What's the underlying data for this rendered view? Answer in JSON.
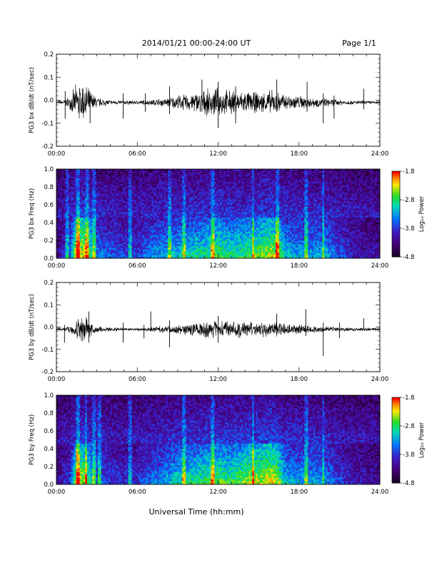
{
  "header": {
    "title": "2014/01/21  00:00-24:00 UT",
    "page": "Page 1/1"
  },
  "footer": {
    "xlabel": "Universal Time (hh:mm)"
  },
  "chart_data": [
    {
      "id": "bx-dbdt",
      "type": "line",
      "ylabel": "PG3 bx dB/dt (nT/sec)",
      "xlim": [
        0,
        24
      ],
      "ylim": [
        -0.2,
        0.2
      ],
      "xticks": [
        "00:00",
        "06:00",
        "12:00",
        "18:00",
        "24:00"
      ],
      "yticks": [
        "0.2",
        "0.1",
        "0.0",
        "-0.1",
        "-0.2"
      ],
      "yvals": [
        0.2,
        0.1,
        0.0,
        -0.1,
        -0.2
      ],
      "baseline": -0.01,
      "envelope": [
        {
          "x": 0.0,
          "amp": 0.008
        },
        {
          "x": 0.5,
          "amp": 0.012
        },
        {
          "x": 1.0,
          "amp": 0.03
        },
        {
          "x": 1.5,
          "amp": 0.09
        },
        {
          "x": 2.0,
          "amp": 0.1
        },
        {
          "x": 2.5,
          "amp": 0.06
        },
        {
          "x": 3.0,
          "amp": 0.025
        },
        {
          "x": 4.0,
          "amp": 0.012
        },
        {
          "x": 5.0,
          "amp": 0.01
        },
        {
          "x": 6.0,
          "amp": 0.01
        },
        {
          "x": 7.0,
          "amp": 0.014
        },
        {
          "x": 8.0,
          "amp": 0.02
        },
        {
          "x": 9.0,
          "amp": 0.035
        },
        {
          "x": 10.0,
          "amp": 0.045
        },
        {
          "x": 11.0,
          "amp": 0.06
        },
        {
          "x": 12.0,
          "amp": 0.07
        },
        {
          "x": 13.0,
          "amp": 0.06
        },
        {
          "x": 14.0,
          "amp": 0.055
        },
        {
          "x": 15.0,
          "amp": 0.05
        },
        {
          "x": 16.0,
          "amp": 0.06
        },
        {
          "x": 17.0,
          "amp": 0.04
        },
        {
          "x": 18.0,
          "amp": 0.035
        },
        {
          "x": 19.0,
          "amp": 0.025
        },
        {
          "x": 20.0,
          "amp": 0.02
        },
        {
          "x": 21.0,
          "amp": 0.015
        },
        {
          "x": 22.0,
          "amp": 0.01
        },
        {
          "x": 23.0,
          "amp": 0.01
        },
        {
          "x": 24.0,
          "amp": 0.008
        }
      ],
      "spikes": [
        {
          "x": 0.65,
          "hi": 0.04,
          "lo": -0.08
        },
        {
          "x": 2.5,
          "hi": 0.02,
          "lo": -0.1
        },
        {
          "x": 4.95,
          "hi": 0.03,
          "lo": -0.08
        },
        {
          "x": 6.6,
          "hi": 0.03,
          "lo": -0.05
        },
        {
          "x": 8.4,
          "hi": 0.06,
          "lo": -0.06
        },
        {
          "x": 10.8,
          "hi": 0.09,
          "lo": -0.05
        },
        {
          "x": 12.0,
          "hi": 0.08,
          "lo": -0.12
        },
        {
          "x": 13.3,
          "hi": 0.06,
          "lo": -0.1
        },
        {
          "x": 16.35,
          "hi": 0.09,
          "lo": -0.05
        },
        {
          "x": 18.6,
          "hi": 0.08,
          "lo": -0.05
        },
        {
          "x": 19.8,
          "hi": 0.03,
          "lo": -0.1
        },
        {
          "x": 20.6,
          "hi": 0.02,
          "lo": -0.08
        },
        {
          "x": 22.8,
          "hi": 0.05,
          "lo": -0.04
        }
      ]
    },
    {
      "id": "bx-spec",
      "type": "heatmap",
      "ylabel": "PG3 bx Freq (Hz)",
      "xlim": [
        0,
        24
      ],
      "ylim": [
        0,
        1.0
      ],
      "xticks": [
        "00:00",
        "06:00",
        "12:00",
        "18:00",
        "24:00"
      ],
      "yticks": [
        "1.0",
        "0.8",
        "0.6",
        "0.4",
        "0.2",
        "0.0"
      ],
      "yvals": [
        1.0,
        0.8,
        0.6,
        0.4,
        0.2,
        0.0
      ],
      "colorbar": {
        "label": "Log₁₀ Power",
        "range": [
          -4.8,
          -1.8
        ],
        "ticks": [
          "-1.8",
          "-2.8",
          "-3.8",
          "-4.8"
        ],
        "tickvals": [
          -1.8,
          -2.8,
          -3.8,
          -4.8
        ]
      },
      "activity": [
        {
          "x": 0.0,
          "power": 0.1
        },
        {
          "x": 1.0,
          "power": 0.35
        },
        {
          "x": 1.5,
          "power": 0.95
        },
        {
          "x": 2.0,
          "power": 0.9
        },
        {
          "x": 2.5,
          "power": 0.7
        },
        {
          "x": 3.0,
          "power": 0.45
        },
        {
          "x": 4.0,
          "power": 0.35
        },
        {
          "x": 5.0,
          "power": 0.3
        },
        {
          "x": 6.0,
          "power": 0.3
        },
        {
          "x": 7.0,
          "power": 0.45
        },
        {
          "x": 8.0,
          "power": 0.5
        },
        {
          "x": 9.0,
          "power": 0.55
        },
        {
          "x": 10.0,
          "power": 0.6
        },
        {
          "x": 11.0,
          "power": 0.65
        },
        {
          "x": 12.0,
          "power": 0.75
        },
        {
          "x": 13.0,
          "power": 0.65
        },
        {
          "x": 14.0,
          "power": 0.7
        },
        {
          "x": 15.0,
          "power": 0.75
        },
        {
          "x": 16.0,
          "power": 0.85
        },
        {
          "x": 16.5,
          "power": 0.8
        },
        {
          "x": 17.0,
          "power": 0.55
        },
        {
          "x": 18.0,
          "power": 0.5
        },
        {
          "x": 19.0,
          "power": 0.5
        },
        {
          "x": 20.0,
          "power": 0.5
        },
        {
          "x": 21.0,
          "power": 0.35
        },
        {
          "x": 22.0,
          "power": 0.2
        },
        {
          "x": 23.0,
          "power": 0.15
        },
        {
          "x": 24.0,
          "power": 0.15
        }
      ],
      "bright_columns": [
        0.8,
        1.6,
        2.3,
        2.8,
        5.5,
        8.4,
        9.5,
        11.6,
        14.6,
        16.4,
        18.5,
        19.8
      ]
    },
    {
      "id": "by-dbdt",
      "type": "line",
      "ylabel": "PG3 by dB/dt (nT/sec)",
      "xlim": [
        0,
        24
      ],
      "ylim": [
        -0.2,
        0.2
      ],
      "xticks": [
        "00:00",
        "06:00",
        "12:00",
        "18:00",
        "24:00"
      ],
      "yticks": [
        "0.2",
        "0.1",
        "0.0",
        "-0.1",
        "-0.2"
      ],
      "yvals": [
        0.2,
        0.1,
        0.0,
        -0.1,
        -0.2
      ],
      "baseline": -0.01,
      "envelope": [
        {
          "x": 0.0,
          "amp": 0.008
        },
        {
          "x": 0.5,
          "amp": 0.01
        },
        {
          "x": 1.0,
          "amp": 0.02
        },
        {
          "x": 1.5,
          "amp": 0.05
        },
        {
          "x": 2.0,
          "amp": 0.07
        },
        {
          "x": 2.5,
          "amp": 0.04
        },
        {
          "x": 3.0,
          "amp": 0.018
        },
        {
          "x": 4.0,
          "amp": 0.01
        },
        {
          "x": 5.0,
          "amp": 0.008
        },
        {
          "x": 6.0,
          "amp": 0.008
        },
        {
          "x": 7.0,
          "amp": 0.012
        },
        {
          "x": 8.0,
          "amp": 0.018
        },
        {
          "x": 9.0,
          "amp": 0.025
        },
        {
          "x": 10.0,
          "amp": 0.03
        },
        {
          "x": 11.0,
          "amp": 0.04
        },
        {
          "x": 12.0,
          "amp": 0.045
        },
        {
          "x": 13.0,
          "amp": 0.04
        },
        {
          "x": 14.0,
          "amp": 0.04
        },
        {
          "x": 15.0,
          "amp": 0.035
        },
        {
          "x": 16.0,
          "amp": 0.04
        },
        {
          "x": 17.0,
          "amp": 0.03
        },
        {
          "x": 18.0,
          "amp": 0.025
        },
        {
          "x": 19.0,
          "amp": 0.02
        },
        {
          "x": 20.0,
          "amp": 0.015
        },
        {
          "x": 21.0,
          "amp": 0.012
        },
        {
          "x": 22.0,
          "amp": 0.008
        },
        {
          "x": 23.0,
          "amp": 0.008
        },
        {
          "x": 24.0,
          "amp": 0.006
        }
      ],
      "spikes": [
        {
          "x": 0.6,
          "hi": 0.01,
          "lo": -0.07
        },
        {
          "x": 2.4,
          "hi": 0.07,
          "lo": -0.07
        },
        {
          "x": 4.95,
          "hi": 0.02,
          "lo": -0.07
        },
        {
          "x": 6.5,
          "hi": 0.01,
          "lo": -0.05
        },
        {
          "x": 7.0,
          "hi": 0.07,
          "lo": -0.02
        },
        {
          "x": 8.4,
          "hi": 0.03,
          "lo": -0.09
        },
        {
          "x": 12.0,
          "hi": 0.05,
          "lo": -0.07
        },
        {
          "x": 16.35,
          "hi": 0.06,
          "lo": -0.03
        },
        {
          "x": 18.5,
          "hi": 0.08,
          "lo": -0.04
        },
        {
          "x": 19.8,
          "hi": 0.02,
          "lo": -0.13
        },
        {
          "x": 21.0,
          "hi": 0.02,
          "lo": -0.05
        },
        {
          "x": 22.8,
          "hi": 0.04,
          "lo": -0.01
        }
      ]
    },
    {
      "id": "by-spec",
      "type": "heatmap",
      "ylabel": "PG3 by Freq (Hz)",
      "xlim": [
        0,
        24
      ],
      "ylim": [
        0,
        1.0
      ],
      "xticks": [
        "00:00",
        "06:00",
        "12:00",
        "18:00",
        "24:00"
      ],
      "yticks": [
        "1.0",
        "0.8",
        "0.6",
        "0.4",
        "0.2",
        "0.0"
      ],
      "yvals": [
        1.0,
        0.8,
        0.6,
        0.4,
        0.2,
        0.0
      ],
      "colorbar": {
        "label": "Log₁₀ Power",
        "range": [
          -4.8,
          -1.8
        ],
        "ticks": [
          "-1.8",
          "-2.8",
          "-3.8",
          "-4.8"
        ],
        "tickvals": [
          -1.8,
          -2.8,
          -3.8,
          -4.8
        ]
      },
      "activity": [
        {
          "x": 0.0,
          "power": 0.1
        },
        {
          "x": 1.0,
          "power": 0.3
        },
        {
          "x": 1.5,
          "power": 0.9
        },
        {
          "x": 2.0,
          "power": 0.85
        },
        {
          "x": 2.5,
          "power": 0.65
        },
        {
          "x": 3.0,
          "power": 0.4
        },
        {
          "x": 4.0,
          "power": 0.3
        },
        {
          "x": 5.0,
          "power": 0.25
        },
        {
          "x": 6.0,
          "power": 0.25
        },
        {
          "x": 7.0,
          "power": 0.4
        },
        {
          "x": 8.0,
          "power": 0.5
        },
        {
          "x": 9.0,
          "power": 0.6
        },
        {
          "x": 10.0,
          "power": 0.65
        },
        {
          "x": 11.0,
          "power": 0.7
        },
        {
          "x": 12.0,
          "power": 0.75
        },
        {
          "x": 13.0,
          "power": 0.7
        },
        {
          "x": 14.0,
          "power": 0.8
        },
        {
          "x": 15.0,
          "power": 0.85
        },
        {
          "x": 16.0,
          "power": 0.9
        },
        {
          "x": 16.5,
          "power": 0.8
        },
        {
          "x": 17.0,
          "power": 0.55
        },
        {
          "x": 18.0,
          "power": 0.5
        },
        {
          "x": 19.0,
          "power": 0.5
        },
        {
          "x": 20.0,
          "power": 0.45
        },
        {
          "x": 21.0,
          "power": 0.3
        },
        {
          "x": 22.0,
          "power": 0.2
        },
        {
          "x": 23.0,
          "power": 0.15
        },
        {
          "x": 24.0,
          "power": 0.12
        }
      ],
      "bright_columns": [
        1.6,
        2.2,
        2.8,
        3.2,
        5.5,
        9.5,
        11.6,
        14.6,
        18.5,
        19.8
      ]
    }
  ]
}
